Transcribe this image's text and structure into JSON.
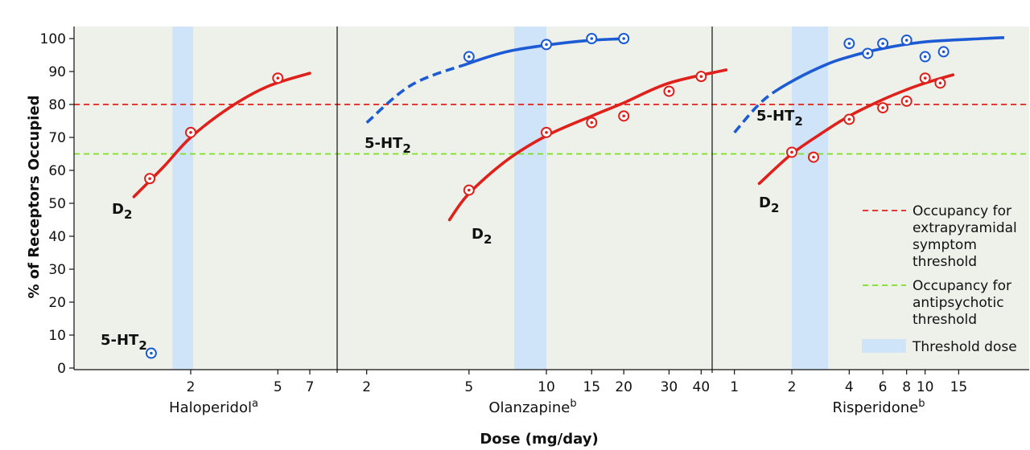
{
  "colors": {
    "background": "#eef1ea",
    "d2": "#e0201b",
    "ht2": "#1c5bd4",
    "eps_line": "#e0201b",
    "antipsychotic_line": "#7fdc2b",
    "threshold_band": "#cfe4f8"
  },
  "chart_data": {
    "type": "line",
    "ylabel": "% of Receptors Occupied",
    "xlabel": "Dose (mg/day)",
    "ylim": [
      0,
      100
    ],
    "y_ticks": [
      0,
      10,
      20,
      30,
      40,
      50,
      60,
      70,
      80,
      90,
      100
    ],
    "x_scale": "log",
    "grid": false,
    "legend_position": "right",
    "reference_lines": [
      {
        "label_lines": [
          "Occupancy for",
          "extrapyramidal",
          "symptom",
          "threshold"
        ],
        "y": 80,
        "color": "#e0201b",
        "style": "dashed"
      },
      {
        "label_lines": [
          "Occupancy for",
          "antipsychotic",
          "threshold"
        ],
        "y": 65,
        "color": "#7fdc2b",
        "style": "dashed"
      }
    ],
    "band_legend_label": "Threshold dose",
    "panels": [
      {
        "drug": "Haloperidol",
        "superscript": "a",
        "x_ticks": [
          2,
          5,
          7
        ],
        "threshold_dose_range": [
          1.65,
          2.05
        ],
        "series": [
          {
            "receptor": "D2",
            "label": "D",
            "sub": "2",
            "curve": [
              [
                1.1,
                52
              ],
              [
                1.5,
                61
              ],
              [
                2,
                70
              ],
              [
                3,
                79
              ],
              [
                4.5,
                85.5
              ],
              [
                7,
                89.5
              ]
            ],
            "curve_dashed_until": null,
            "points": [
              [
                1.3,
                57.5
              ],
              [
                2,
                71.5
              ],
              [
                5,
                88
              ]
            ]
          },
          {
            "receptor": "5-HT2",
            "label": "5-HT",
            "sub": "2",
            "curve": [],
            "curve_dashed_until": null,
            "points": [
              [
                1.32,
                4.5
              ]
            ]
          }
        ]
      },
      {
        "drug": "Olanzapine",
        "superscript": "b",
        "x_ticks": [
          2,
          5,
          10,
          15,
          20,
          30,
          40
        ],
        "threshold_dose_range": [
          7.5,
          10
        ],
        "series": [
          {
            "receptor": "D2",
            "label": "D",
            "sub": "2",
            "curve": [
              [
                4.2,
                45
              ],
              [
                5,
                53
              ],
              [
                7,
                63
              ],
              [
                10,
                70.5
              ],
              [
                15,
                76.5
              ],
              [
                20,
                80.5
              ],
              [
                30,
                86.5
              ],
              [
                50,
                90.5
              ]
            ],
            "curve_dashed_until": null,
            "points": [
              [
                5,
                54
              ],
              [
                10,
                71.5
              ],
              [
                15,
                74.5
              ],
              [
                20,
                76.5
              ],
              [
                30,
                84
              ],
              [
                40,
                88.5
              ]
            ]
          },
          {
            "receptor": "5-HT2",
            "label": "5-HT",
            "sub": "2",
            "curve": [
              [
                2,
                74.5
              ],
              [
                3,
                86
              ],
              [
                5,
                92.5
              ],
              [
                7,
                96
              ],
              [
                10,
                98
              ],
              [
                15,
                99.5
              ],
              [
                21,
                100
              ]
            ],
            "curve_dashed_until": 5,
            "points": [
              [
                5,
                94.5
              ],
              [
                10,
                98.2
              ],
              [
                15,
                100
              ],
              [
                20,
                100
              ]
            ]
          }
        ]
      },
      {
        "drug": "Risperidone",
        "superscript": "b",
        "x_ticks": [
          1,
          2,
          4,
          6,
          8,
          10,
          15
        ],
        "threshold_dose_range": [
          2,
          3.1
        ],
        "series": [
          {
            "receptor": "D2",
            "label": "D",
            "sub": "2",
            "curve": [
              [
                1.35,
                56
              ],
              [
                2,
                65
              ],
              [
                3,
                72
              ],
              [
                4,
                76.5
              ],
              [
                6,
                81.5
              ],
              [
                8,
                84.5
              ],
              [
                10,
                86.5
              ],
              [
                14,
                89
              ]
            ],
            "curve_dashed_until": null,
            "points": [
              [
                2,
                65.5
              ],
              [
                2.6,
                64
              ],
              [
                4,
                75.5
              ],
              [
                6,
                79
              ],
              [
                8,
                81
              ],
              [
                10,
                88
              ],
              [
                12,
                86.5
              ]
            ]
          },
          {
            "receptor": "5-HT2",
            "label": "5-HT",
            "sub": "2",
            "curve": [
              [
                1,
                71.5
              ],
              [
                1.4,
                81
              ],
              [
                2,
                87
              ],
              [
                3,
                92
              ],
              [
                4,
                94.5
              ],
              [
                6,
                97
              ],
              [
                10,
                99
              ],
              [
                20,
                100
              ],
              [
                26,
                100.3
              ]
            ],
            "curve_dashed_until": 1.7,
            "points": [
              [
                4,
                98.5
              ],
              [
                5,
                95.5
              ],
              [
                6,
                98.5
              ],
              [
                8,
                99.5
              ],
              [
                10,
                94.5
              ],
              [
                12.5,
                96
              ]
            ]
          }
        ]
      }
    ]
  }
}
